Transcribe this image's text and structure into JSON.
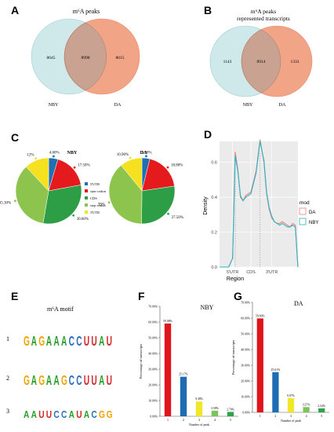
{
  "colors": {
    "venn_left": "#cfe8ea",
    "venn_right": "#f2a487",
    "venn_overlap": "#c9a292",
    "pie": [
      "#1f6fb2",
      "#e41a1c",
      "#2e9e46",
      "#8cc44e",
      "#f5e11f"
    ],
    "density_da": "#f08080",
    "density_nby": "#2bb3c0",
    "bars": [
      "#e0151b",
      "#1e6db4",
      "#f2e62a",
      "#7cc35a",
      "#2fa34a"
    ]
  },
  "panels": {
    "A": {
      "letter": "A",
      "title": "m⁶A peaks",
      "left": "8045",
      "overlap": "8998",
      "right": "8015",
      "left_label": "NBY",
      "right_label": "DA"
    },
    "B": {
      "letter": "B",
      "title_line1": "m⁶A peaks",
      "title_line2": "represented transcripts",
      "left": "1143",
      "overlap": "8914",
      "right": "1333",
      "left_label": "NBY",
      "right_label": "DA"
    },
    "C": {
      "letter": "C",
      "legend": [
        "5'UTR",
        "start codon",
        "CDS",
        "stop codon",
        "3'UTR"
      ]
    },
    "D": {
      "letter": "D",
      "ylabel": "Density",
      "xlabel": "Region",
      "legend_title": "mod",
      "legend": [
        "DA",
        "NBY"
      ]
    },
    "E": {
      "letter": "E",
      "title": "m⁶A motif",
      "rows": [
        {
          "n": "1",
          "letters": [
            [
              "G",
              "#f0a500"
            ],
            [
              "A",
              "#2aa02a"
            ],
            [
              "G",
              "#f0a500"
            ],
            [
              "A",
              "#2aa02a"
            ],
            [
              "A",
              "#2aa02a"
            ],
            [
              "A",
              "#2aa02a"
            ],
            [
              "C",
              "#2c6fbb"
            ],
            [
              "C",
              "#2c6fbb"
            ],
            [
              "U",
              "#d62728"
            ],
            [
              "U",
              "#d62728"
            ],
            [
              "A",
              "#2aa02a"
            ],
            [
              "U",
              "#d62728"
            ]
          ]
        },
        {
          "n": "2",
          "letters": [
            [
              "G",
              "#f0a500"
            ],
            [
              "A",
              "#2aa02a"
            ],
            [
              "G",
              "#f0a500"
            ],
            [
              "A",
              "#2aa02a"
            ],
            [
              "A",
              "#2aa02a"
            ],
            [
              "G",
              "#f0a500"
            ],
            [
              "C",
              "#2c6fbb"
            ],
            [
              "C",
              "#2c6fbb"
            ],
            [
              "U",
              "#d62728"
            ],
            [
              "U",
              "#d62728"
            ],
            [
              "A",
              "#2aa02a"
            ],
            [
              "U",
              "#d62728"
            ]
          ]
        },
        {
          "n": "3",
          "letters": [
            [
              "A",
              "#2aa02a"
            ],
            [
              "A",
              "#2aa02a"
            ],
            [
              "U",
              "#d62728"
            ],
            [
              "U",
              "#d62728"
            ],
            [
              "C",
              "#2c6fbb"
            ],
            [
              "C",
              "#2c6fbb"
            ],
            [
              "A",
              "#2aa02a"
            ],
            [
              "U",
              "#d62728"
            ],
            [
              "A",
              "#2aa02a"
            ],
            [
              "C",
              "#2c6fbb"
            ],
            [
              "G",
              "#f0a500"
            ],
            [
              "G",
              "#f0a500"
            ]
          ]
        }
      ]
    },
    "F": {
      "letter": "F"
    },
    "G": {
      "letter": "G"
    }
  },
  "chart_data": [
    {
      "panel": "C",
      "type": "pie",
      "title": "NBY",
      "categories": [
        "5'UTR",
        "start codon",
        "CDS",
        "stop codon",
        "3'UTR"
      ],
      "values": [
        4.6,
        17.5,
        30.6,
        35.3,
        12.0
      ],
      "labels": [
        "4.60%",
        "17.50%",
        "30.60%",
        "35.30%",
        "12%"
      ]
    },
    {
      "panel": "C",
      "type": "pie",
      "title": "DA",
      "categories": [
        "5'UTR",
        "start codon",
        "CDS",
        "stop codon",
        "3'UTR"
      ],
      "values": [
        3.9,
        18.8,
        27.5,
        39.0,
        10.9
      ],
      "labels": [
        "3.90%",
        "18.80%",
        "27.50%",
        "39%",
        "10.90%"
      ]
    },
    {
      "panel": "D",
      "type": "line",
      "xlabel": "Region",
      "ylabel": "Density",
      "x_ticks": [
        "5'UTR",
        "CDS",
        "3'UTR"
      ],
      "y_ticks": [
        "0.0",
        "0.2",
        "0.4",
        "0.6"
      ],
      "ylim": [
        0,
        0.72
      ],
      "xlim": [
        0,
        3
      ],
      "series": [
        {
          "name": "DA",
          "x": [
            0.0,
            0.35,
            0.5,
            0.6,
            0.7,
            0.8,
            0.9,
            1.0,
            1.2,
            1.4,
            1.55,
            1.7,
            1.8,
            1.9,
            2.0,
            2.1,
            2.2,
            2.3,
            2.4,
            2.5,
            2.6,
            2.7,
            2.8,
            2.9,
            3.0
          ],
          "y": [
            0.0,
            0.0,
            0.05,
            0.66,
            0.56,
            0.4,
            0.38,
            0.41,
            0.43,
            0.55,
            0.73,
            0.6,
            0.42,
            0.33,
            0.28,
            0.26,
            0.25,
            0.25,
            0.26,
            0.25,
            0.24,
            0.23,
            0.25,
            0.24,
            0.0
          ]
        },
        {
          "name": "NBY",
          "x": [
            0.0,
            0.35,
            0.5,
            0.6,
            0.7,
            0.8,
            0.9,
            1.0,
            1.2,
            1.4,
            1.55,
            1.7,
            1.8,
            1.9,
            2.0,
            2.1,
            2.2,
            2.3,
            2.4,
            2.5,
            2.6,
            2.7,
            2.8,
            2.9,
            3.0
          ],
          "y": [
            0.0,
            0.0,
            0.05,
            0.64,
            0.55,
            0.41,
            0.38,
            0.4,
            0.42,
            0.54,
            0.72,
            0.61,
            0.43,
            0.34,
            0.29,
            0.26,
            0.25,
            0.24,
            0.25,
            0.24,
            0.23,
            0.23,
            0.24,
            0.23,
            0.0
          ]
        }
      ]
    },
    {
      "panel": "F",
      "type": "bar",
      "title": "NBY",
      "categories": [
        "1",
        "2",
        "3",
        "4",
        "5"
      ],
      "values": [
        59.08,
        25.17,
        9.38,
        3.58,
        2.79
      ],
      "labels": [
        "59.08%",
        "25.17%",
        "9.38%",
        "3.58%",
        "2.79%"
      ],
      "xlabel": "Number of peak",
      "ylabel": "Percentage of transcripts",
      "ylim": [
        0,
        70
      ],
      "y_ticks": [
        "0.00%",
        "10.00%",
        "20.00%",
        "30.00%",
        "40.00%",
        "50.00%",
        "60.00%",
        "70.00%"
      ]
    },
    {
      "panel": "G",
      "type": "bar",
      "title": "DA",
      "categories": [
        "1",
        "2",
        "3",
        "4",
        "5"
      ],
      "values": [
        59.8,
        25.61,
        9.07,
        3.37,
        2.54
      ],
      "labels": [
        "59.80%",
        "25.61%",
        "9.07%",
        "3.37%",
        "2.54%"
      ],
      "xlabel": "Number of peak",
      "ylabel": "Percentage of transcripts",
      "ylim": [
        0,
        70
      ],
      "y_ticks": [
        "0.00%",
        "10.00%",
        "20.00%",
        "30.00%",
        "40.00%",
        "50.00%",
        "60.00%",
        "70.00%"
      ]
    }
  ]
}
